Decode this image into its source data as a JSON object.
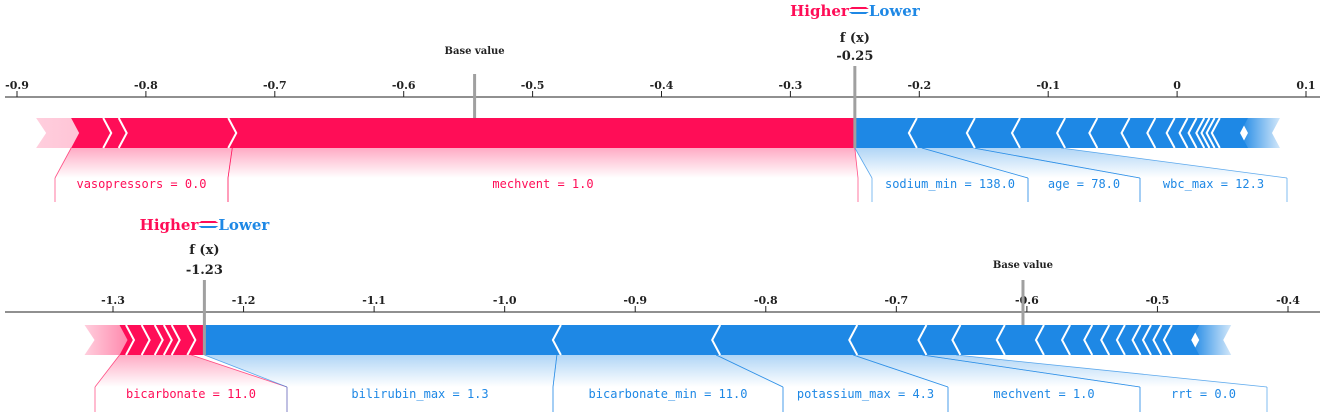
{
  "colors": {
    "positive": "#ff0d57",
    "negative": "#1e88e5",
    "axis": "#222222",
    "marker": "#a0a0a0"
  },
  "chart_data": [
    {
      "type": "force",
      "axis_ticks": [
        "-0.9",
        "-0.8",
        "-0.7",
        "-0.6",
        "-0.5",
        "-0.4",
        "-0.3",
        "-0.2",
        "-0.1",
        "0",
        "0.1"
      ],
      "axis_range": [
        -0.9,
        0.1
      ],
      "legend": {
        "higher": "Higher",
        "lower": "Lower"
      },
      "fx_label": "f (x)",
      "fx_value": -0.25,
      "fx_text": "-0.25",
      "base_label": "Base value",
      "base_value": -0.545,
      "red_extent": [
        -0.858,
        -0.25
      ],
      "blue_extent": [
        -0.25,
        0.055
      ],
      "red_chevrons": [
        -0.83,
        -0.818,
        -0.733
      ],
      "blue_chevrons": [
        -0.205,
        -0.16,
        -0.125,
        -0.09,
        -0.065,
        -0.04,
        -0.02,
        -0.005,
        0.005,
        0.012,
        0.018,
        0.022,
        0.026,
        0.03
      ],
      "features": [
        {
          "label": "vasopressors = 0.0",
          "side": "positive",
          "seg": [
            -0.858,
            -0.733
          ]
        },
        {
          "label": "mechvent = 1.0",
          "side": "positive",
          "seg": [
            -0.733,
            -0.25
          ]
        },
        {
          "label": "sodium_min = 138.0",
          "side": "negative",
          "seg": [
            -0.25,
            -0.198
          ]
        },
        {
          "label": "age = 78.0",
          "side": "negative",
          "seg": [
            -0.198,
            -0.158
          ]
        },
        {
          "label": "wbc_max = 12.3",
          "side": "negative",
          "seg": [
            -0.158,
            -0.09
          ]
        }
      ]
    },
    {
      "type": "force",
      "axis_ticks": [
        "-1.3",
        "-1.2",
        "-1.1",
        "-1.0",
        "-0.9",
        "-0.8",
        "-0.7",
        "-0.6",
        "-0.5",
        "-0.4"
      ],
      "axis_range": [
        -1.3,
        -0.4
      ],
      "legend": {
        "higher": "Higher",
        "lower": "Lower"
      },
      "fx_label": "f (x)",
      "fx_value": -1.23,
      "fx_text": "-1.23",
      "base_label": "Base value",
      "base_value": -0.603,
      "red_extent": [
        -1.295,
        -1.23
      ],
      "blue_extent": [
        -1.23,
        -0.468
      ],
      "red_chevrons": [
        -1.287,
        -1.275,
        -1.265,
        -1.258,
        -1.252,
        -1.24
      ],
      "blue_chevrons": [
        -0.96,
        -0.838,
        -0.733,
        -0.68,
        -0.654,
        -0.62,
        -0.59,
        -0.57,
        -0.553,
        -0.54,
        -0.528,
        -0.516,
        -0.508,
        -0.5,
        -0.492
      ],
      "features": [
        {
          "label": "bicarbonate = 11.0",
          "side": "positive",
          "seg": [
            -1.295,
            -1.24
          ]
        },
        {
          "label": "bilirubin_max = 1.3",
          "side": "negative",
          "seg": [
            -1.23,
            -0.96
          ]
        },
        {
          "label": "bicarbonate_min = 11.0",
          "side": "negative",
          "seg": [
            -0.96,
            -0.838
          ]
        },
        {
          "label": "potassium_max = 4.3",
          "side": "negative",
          "seg": [
            -0.838,
            -0.733
          ]
        },
        {
          "label": "mechvent = 1.0",
          "side": "negative",
          "seg": [
            -0.733,
            -0.68
          ]
        },
        {
          "label": "rrt = 0.0",
          "side": "negative",
          "seg": [
            -0.68,
            -0.654
          ]
        }
      ]
    }
  ]
}
